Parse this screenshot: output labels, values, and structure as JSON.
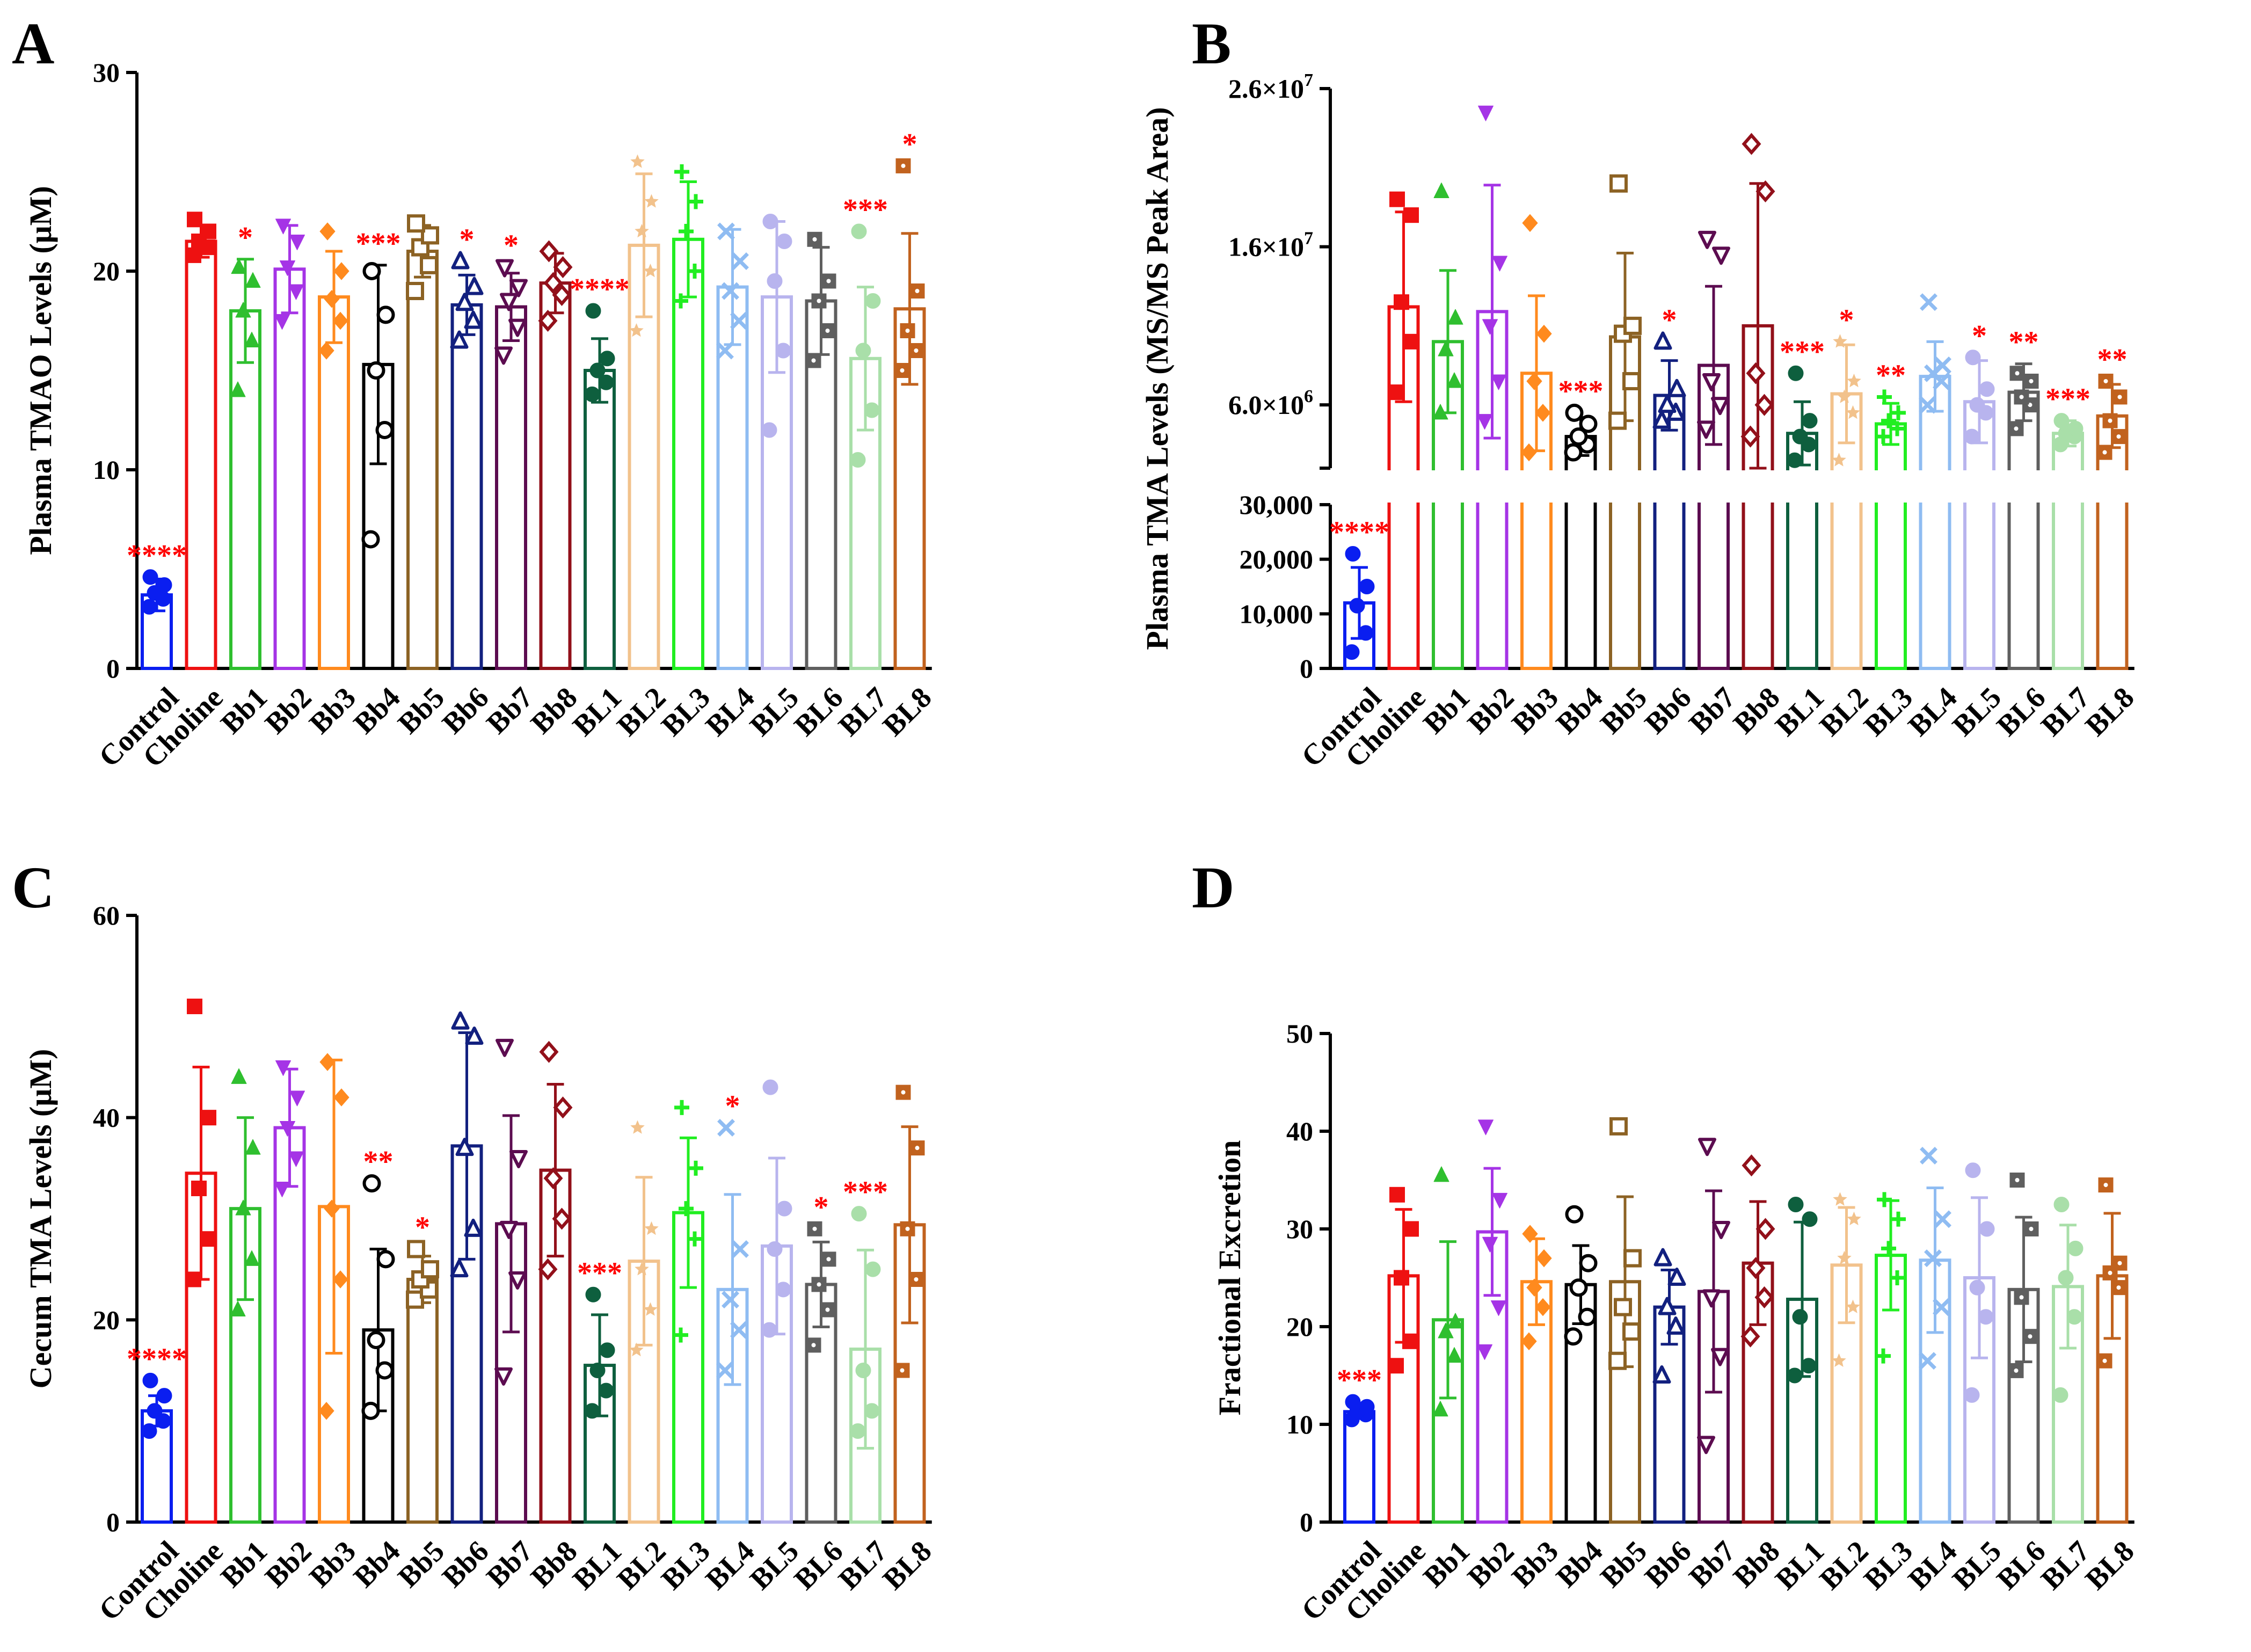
{
  "figure": {
    "panel_letters": [
      "A",
      "B",
      "C",
      "D"
    ],
    "significance_color": "#ff0000"
  },
  "categories": [
    "Control",
    "Choline",
    "Bb1",
    "Bb2",
    "Bb3",
    "Bb4",
    "Bb5",
    "Bb6",
    "Bb7",
    "Bb8",
    "BL1",
    "BL2",
    "BL3",
    "BL4",
    "BL5",
    "BL6",
    "BL7",
    "BL8"
  ],
  "group_colors": [
    "#0a1ef0",
    "#ee1111",
    "#2fbf2f",
    "#a534e6",
    "#ff8a1e",
    "#000000",
    "#8c6224",
    "#12207f",
    "#5c0c50",
    "#92101a",
    "#0e5f3e",
    "#f2c28c",
    "#21ee21",
    "#8fbcf2",
    "#b8b4ee",
    "#5f5f5f",
    "#a9dfa9",
    "#c1621e"
  ],
  "marker_shapes": [
    "circle",
    "square",
    "triangle",
    "triangle-down",
    "diamond",
    "circle-open",
    "square-open",
    "triangle-open",
    "triangle-down-open",
    "diamond-open",
    "circle",
    "star",
    "plus",
    "cross",
    "circle",
    "square-dot",
    "circle",
    "square-dot"
  ],
  "chart_data": [
    {
      "panel": "A",
      "type": "bar",
      "title": "",
      "xlabel": "",
      "ylabel": "Plasma TMAO Levels (μM)",
      "ylim": [
        0,
        30
      ],
      "yticks": [
        "0",
        "10",
        "20",
        "30"
      ],
      "categories": [
        "Control",
        "Choline",
        "Bb1",
        "Bb2",
        "Bb3",
        "Bb4",
        "Bb5",
        "Bb6",
        "Bb7",
        "Bb8",
        "BL1",
        "BL2",
        "BL3",
        "BL4",
        "BL5",
        "BL6",
        "BL7",
        "BL8"
      ],
      "values": [
        3.7,
        21.5,
        18.0,
        20.1,
        18.7,
        15.3,
        21.0,
        18.3,
        18.2,
        19.4,
        15.0,
        21.3,
        21.6,
        19.2,
        18.7,
        18.5,
        15.6,
        18.1
      ],
      "sd": [
        0.8,
        0.8,
        2.6,
        2.2,
        2.3,
        5.0,
        1.3,
        1.5,
        1.7,
        1.5,
        1.6,
        3.6,
        2.9,
        2.9,
        3.8,
        2.7,
        3.6,
        3.8
      ],
      "points": [
        [
          3.1,
          3.5,
          3.8,
          4.2,
          4.6
        ],
        [
          20.8,
          21.2,
          21.5,
          22.0,
          22.6
        ],
        [
          14.0,
          16.5,
          18.0,
          19.5,
          20.2
        ],
        [
          17.5,
          19.0,
          20.2,
          21.5,
          22.3
        ],
        [
          16.0,
          17.5,
          18.6,
          20.0,
          22.0
        ],
        [
          6.5,
          12.0,
          15.0,
          17.8,
          20.0
        ],
        [
          19.0,
          20.3,
          21.2,
          21.8,
          22.4
        ],
        [
          16.5,
          17.5,
          18.4,
          19.2,
          20.5
        ],
        [
          15.8,
          17.2,
          18.5,
          19.2,
          20.2
        ],
        [
          17.5,
          18.8,
          19.4,
          20.2,
          21.0
        ],
        [
          13.8,
          14.4,
          15.0,
          15.6,
          18.0
        ],
        [
          17.0,
          20.0,
          22.0,
          23.5,
          25.5
        ],
        [
          18.5,
          20.0,
          22.0,
          23.5,
          25.0
        ],
        [
          16.0,
          17.5,
          19.0,
          20.5,
          22.0
        ],
        [
          12.0,
          16.0,
          19.5,
          21.5,
          22.5
        ],
        [
          15.5,
          17.0,
          18.5,
          19.5,
          21.6
        ],
        [
          10.5,
          13.0,
          16.0,
          18.5,
          22.0
        ],
        [
          15.0,
          16.0,
          17.0,
          19.0,
          25.3
        ]
      ],
      "significance": [
        "****",
        "",
        "*",
        "",
        "",
        "***",
        "",
        "*",
        "*",
        "",
        "****",
        "",
        "",
        "",
        "",
        "",
        "***",
        "*"
      ]
    },
    {
      "panel": "B",
      "type": "bar",
      "title": "",
      "xlabel": "",
      "ylabel": "Plasma TMA Levels (MS/MS Peak Area)",
      "axis_break": true,
      "ylim_lower": [
        0,
        30000
      ],
      "ylim_upper": [
        2000000,
        26000000
      ],
      "yticks_lower": [
        "0",
        "10,000",
        "20,000",
        "30,000"
      ],
      "yticks_upper": [
        "6.0×10^6",
        "1.6×10^7",
        "2.6×10^7"
      ],
      "categories": [
        "Control",
        "Choline",
        "Bb1",
        "Bb2",
        "Bb3",
        "Bb4",
        "Bb5",
        "Bb6",
        "Bb7",
        "Bb8",
        "BL1",
        "BL2",
        "BL3",
        "BL4",
        "BL5",
        "BL6",
        "BL7",
        "BL8"
      ],
      "values": [
        12000,
        12200000,
        10000000,
        11900000,
        8000000,
        4000000,
        10300000,
        6600000,
        8500000,
        11000000,
        4200000,
        6700000,
        4800000,
        7800000,
        6200000,
        6800000,
        4200000,
        5300000
      ],
      "sd": [
        6500,
        6000000,
        4500000,
        8000000,
        4900000,
        1200000,
        5300000,
        2200000,
        5000000,
        9000000,
        2000000,
        3100000,
        1300000,
        2200000,
        2600000,
        1800000,
        800000,
        2000000
      ],
      "points": [
        [
          3000,
          6500,
          11500,
          15000,
          21000
        ],
        [
          6800000,
          10000000,
          12500000,
          18000000,
          19000000
        ],
        [
          5500000,
          7500000,
          9500000,
          11500000,
          19500000
        ],
        [
          5000000,
          7500000,
          11000000,
          15000000,
          24500000
        ],
        [
          3000000,
          5500000,
          7500000,
          10500000,
          17500000
        ],
        [
          3000000,
          3500000,
          4000000,
          4800000,
          5500000
        ],
        [
          5000000,
          7500000,
          10500000,
          11000000,
          20000000
        ],
        [
          5000000,
          5500000,
          6000000,
          7000000,
          10000000
        ],
        [
          4500000,
          6000000,
          7500000,
          15500000,
          16500000
        ],
        [
          4000000,
          6000000,
          8000000,
          19500000,
          22500000
        ],
        [
          2500000,
          3500000,
          4000000,
          5000000,
          8000000
        ],
        [
          2500000,
          5500000,
          6500000,
          7500000,
          10000000
        ],
        [
          4000000,
          4500000,
          5000000,
          5500000,
          6500000
        ],
        [
          6000000,
          7500000,
          8000000,
          8500000,
          12500000
        ],
        [
          4000000,
          5500000,
          6000000,
          7000000,
          9000000
        ],
        [
          4500000,
          6000000,
          6500000,
          7500000,
          8000000
        ],
        [
          3500000,
          4000000,
          4200000,
          4500000,
          5000000
        ],
        [
          3000000,
          4000000,
          5000000,
          6500000,
          7500000
        ]
      ],
      "significance": [
        "****",
        "",
        "",
        "",
        "",
        "***",
        "",
        "*",
        "",
        "",
        "***",
        "*",
        "**",
        "",
        "*",
        "**",
        "***",
        "**"
      ]
    },
    {
      "panel": "C",
      "type": "bar",
      "title": "",
      "xlabel": "",
      "ylabel": "Cecum TMA Levels (μM)",
      "ylim": [
        0,
        60
      ],
      "yticks": [
        "0",
        "20",
        "40",
        "60"
      ],
      "categories": [
        "Control",
        "Choline",
        "Bb1",
        "Bb2",
        "Bb3",
        "Bb4",
        "Bb5",
        "Bb6",
        "Bb7",
        "Bb8",
        "BL1",
        "BL2",
        "BL3",
        "BL4",
        "BL5",
        "BL6",
        "BL7",
        "BL8"
      ],
      "values": [
        11.0,
        34.5,
        31.0,
        39.0,
        31.2,
        19.0,
        24.0,
        37.2,
        29.5,
        34.8,
        15.5,
        25.8,
        30.6,
        23.0,
        27.3,
        23.5,
        17.1,
        29.4
      ],
      "sd": [
        1.5,
        10.5,
        9.0,
        5.8,
        14.5,
        8.0,
        2.3,
        11.2,
        10.7,
        8.5,
        5.0,
        8.3,
        7.4,
        9.4,
        8.7,
        4.2,
        9.8,
        9.7
      ],
      "points": [
        [
          9.0,
          10.0,
          11.0,
          12.5,
          14.0
        ],
        [
          24.0,
          28.0,
          33.0,
          40.0,
          51.0
        ],
        [
          21.0,
          26.0,
          31.0,
          37.0,
          44.0
        ],
        [
          33.0,
          36.0,
          39.0,
          42.0,
          45.0
        ],
        [
          11.0,
          24.0,
          31.0,
          42.0,
          45.5
        ],
        [
          11.0,
          15.0,
          18.0,
          26.0,
          33.5
        ],
        [
          22.0,
          23.0,
          24.0,
          25.0,
          27.0
        ],
        [
          25.0,
          29.0,
          37.0,
          48.0,
          49.5
        ],
        [
          14.5,
          24.0,
          29.0,
          36.0,
          47.0
        ],
        [
          25.0,
          30.0,
          34.0,
          41.0,
          46.5
        ],
        [
          11.0,
          13.0,
          15.0,
          17.0,
          22.5
        ],
        [
          17.0,
          21.0,
          25.0,
          29.0,
          39.0
        ],
        [
          18.5,
          28.0,
          31.0,
          35.0,
          41.0
        ],
        [
          15.0,
          19.0,
          22.0,
          27.0,
          39.0
        ],
        [
          19.0,
          23.0,
          27.0,
          31.0,
          43.0
        ],
        [
          17.5,
          21.0,
          23.5,
          26.0,
          29.0
        ],
        [
          9.0,
          11.0,
          15.0,
          25.0,
          30.5
        ],
        [
          15.0,
          24.0,
          29.0,
          37.0,
          42.5
        ]
      ],
      "significance": [
        "****",
        "",
        "",
        "",
        "",
        "**",
        "*",
        "",
        "",
        "",
        "***",
        "",
        "",
        "*",
        "",
        "*",
        "***",
        ""
      ]
    },
    {
      "panel": "D",
      "type": "bar",
      "title": "",
      "xlabel": "",
      "ylabel": "Fractional Excretion",
      "ylim": [
        0,
        50
      ],
      "yticks": [
        "0",
        "10",
        "20",
        "30",
        "40",
        "50"
      ],
      "categories": [
        "Control",
        "Choline",
        "Bb1",
        "Bb2",
        "Bb3",
        "Bb4",
        "Bb5",
        "Bb6",
        "Bb7",
        "Bb8",
        "BL1",
        "BL2",
        "BL3",
        "BL4",
        "BL5",
        "BL6",
        "BL7",
        "BL8"
      ],
      "values": [
        11.3,
        25.2,
        20.7,
        29.7,
        24.6,
        24.3,
        24.6,
        22.0,
        23.6,
        26.5,
        22.8,
        26.3,
        27.3,
        26.8,
        25.0,
        23.8,
        24.1,
        25.2
      ],
      "sd": [
        0.7,
        6.8,
        8.0,
        6.5,
        4.4,
        4.0,
        8.7,
        3.8,
        10.3,
        6.3,
        7.9,
        5.9,
        5.6,
        7.4,
        8.2,
        7.4,
        6.3,
        6.4
      ],
      "points": [
        [
          10.5,
          11.0,
          11.3,
          11.8,
          12.3
        ],
        [
          16.0,
          18.5,
          25.0,
          30.0,
          33.5
        ],
        [
          11.5,
          17.0,
          19.5,
          20.5,
          35.5
        ],
        [
          17.5,
          22.0,
          28.5,
          33.0,
          40.5
        ],
        [
          18.5,
          22.0,
          24.0,
          27.0,
          29.5
        ],
        [
          19.0,
          21.0,
          24.0,
          26.5,
          31.5
        ],
        [
          16.5,
          19.5,
          22.0,
          27.0,
          40.5
        ],
        [
          15.0,
          20.0,
          22.0,
          25.0,
          27.0
        ],
        [
          8.0,
          17.0,
          23.0,
          30.0,
          38.5
        ],
        [
          19.0,
          23.0,
          26.0,
          30.0,
          36.5
        ],
        [
          15.0,
          16.0,
          21.0,
          31.0,
          32.5
        ],
        [
          16.5,
          22.0,
          27.0,
          31.0,
          33.0
        ],
        [
          17.0,
          25.0,
          28.0,
          31.0,
          33.0
        ],
        [
          16.5,
          22.0,
          27.0,
          31.0,
          37.5
        ],
        [
          13.0,
          21.0,
          24.0,
          30.0,
          36.0
        ],
        [
          15.5,
          19.0,
          23.0,
          30.0,
          35.0
        ],
        [
          13.0,
          21.0,
          25.0,
          28.0,
          32.5
        ],
        [
          16.5,
          24.0,
          25.5,
          26.5,
          34.5
        ]
      ],
      "significance": [
        "***",
        "",
        "",
        "",
        "",
        "",
        "",
        "",
        "",
        "",
        "",
        "",
        "",
        "",
        "",
        "",
        "",
        ""
      ]
    }
  ]
}
